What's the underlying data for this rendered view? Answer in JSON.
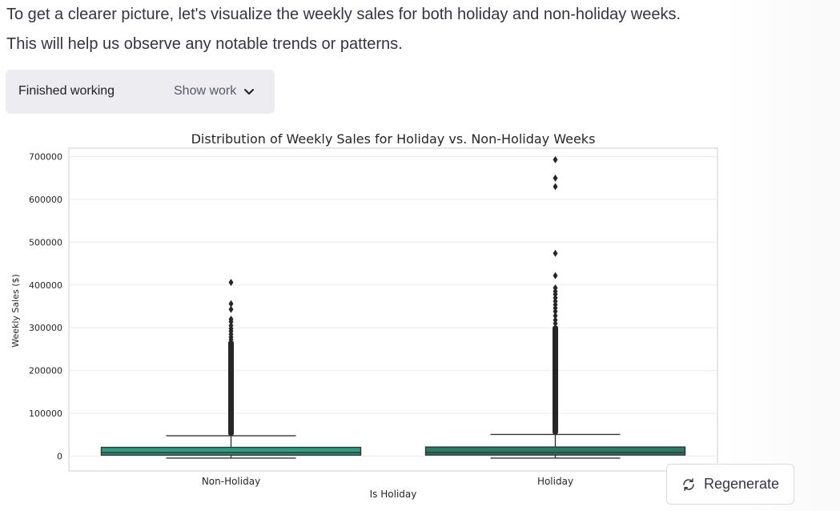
{
  "message": {
    "text": "To get a clearer picture, let's visualize the weekly sales for both holiday and non-holiday weeks. This will help us observe any notable trends or patterns."
  },
  "work": {
    "status": "Finished working",
    "toggle_label": "Show work",
    "toggle_icon": "chevron-down-icon"
  },
  "chart_data": {
    "type": "boxplot",
    "title": "Distribution of Weekly Sales for Holiday vs. Non-Holiday Weeks",
    "xlabel": "Is Holiday",
    "ylabel": "Weekly Sales ($)",
    "ylim": [
      -35000,
      720000
    ],
    "yticks": [
      0,
      100000,
      200000,
      300000,
      400000,
      500000,
      600000,
      700000
    ],
    "grid": true,
    "categories": [
      "Non-Holiday",
      "Holiday"
    ],
    "colors": [
      "#2a9d80",
      "#277c66"
    ],
    "series": [
      {
        "category": "Non-Holiday",
        "whisker_low": -4900,
        "q1": 2000,
        "median": 7600,
        "q3": 20200,
        "whisker_high": 47300,
        "outlier_dense_range": [
          47300,
          270000
        ],
        "outliers": [
          406000,
          356000,
          343000,
          320000,
          314000,
          305000,
          298000,
          292000,
          285000,
          278000,
          272000
        ]
      },
      {
        "category": "Holiday",
        "whisker_low": -4900,
        "q1": 2200,
        "median": 7900,
        "q3": 21000,
        "whisker_high": 50300,
        "outlier_dense_range": [
          50300,
          305000
        ],
        "outliers": [
          693000,
          650000,
          630000,
          474000,
          422000,
          393000,
          385000,
          378000,
          370000,
          362000,
          354000,
          346000,
          338000,
          328000,
          318000,
          310000
        ]
      }
    ]
  },
  "actions": {
    "regenerate_label": "Regenerate",
    "regenerate_icon": "refresh-icon"
  }
}
